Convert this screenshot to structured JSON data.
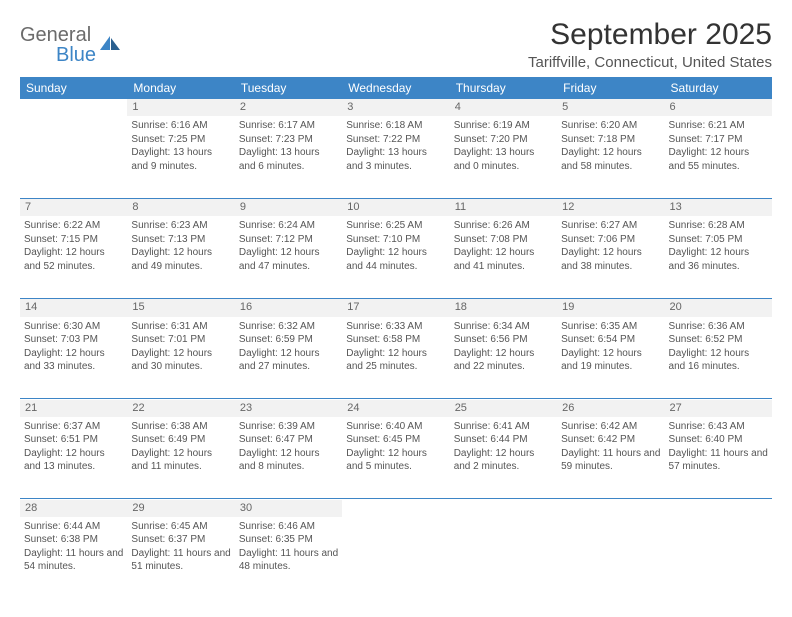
{
  "brand": {
    "name1": "General",
    "name2": "Blue"
  },
  "title": "September 2025",
  "location": "Tariffville, Connecticut, United States",
  "colors": {
    "header_bg": "#3d85c6",
    "header_text": "#ffffff",
    "daynum_bg": "#f2f2f2",
    "text": "#555555",
    "brand_gray": "#6b6b6b",
    "brand_blue": "#3d85c6"
  },
  "day_labels": [
    "Sunday",
    "Monday",
    "Tuesday",
    "Wednesday",
    "Thursday",
    "Friday",
    "Saturday"
  ],
  "weeks": [
    {
      "nums": [
        "",
        "1",
        "2",
        "3",
        "4",
        "5",
        "6"
      ],
      "cells": [
        "",
        "Sunrise: 6:16 AM\nSunset: 7:25 PM\nDaylight: 13 hours and 9 minutes.",
        "Sunrise: 6:17 AM\nSunset: 7:23 PM\nDaylight: 13 hours and 6 minutes.",
        "Sunrise: 6:18 AM\nSunset: 7:22 PM\nDaylight: 13 hours and 3 minutes.",
        "Sunrise: 6:19 AM\nSunset: 7:20 PM\nDaylight: 13 hours and 0 minutes.",
        "Sunrise: 6:20 AM\nSunset: 7:18 PM\nDaylight: 12 hours and 58 minutes.",
        "Sunrise: 6:21 AM\nSunset: 7:17 PM\nDaylight: 12 hours and 55 minutes."
      ]
    },
    {
      "nums": [
        "7",
        "8",
        "9",
        "10",
        "11",
        "12",
        "13"
      ],
      "cells": [
        "Sunrise: 6:22 AM\nSunset: 7:15 PM\nDaylight: 12 hours and 52 minutes.",
        "Sunrise: 6:23 AM\nSunset: 7:13 PM\nDaylight: 12 hours and 49 minutes.",
        "Sunrise: 6:24 AM\nSunset: 7:12 PM\nDaylight: 12 hours and 47 minutes.",
        "Sunrise: 6:25 AM\nSunset: 7:10 PM\nDaylight: 12 hours and 44 minutes.",
        "Sunrise: 6:26 AM\nSunset: 7:08 PM\nDaylight: 12 hours and 41 minutes.",
        "Sunrise: 6:27 AM\nSunset: 7:06 PM\nDaylight: 12 hours and 38 minutes.",
        "Sunrise: 6:28 AM\nSunset: 7:05 PM\nDaylight: 12 hours and 36 minutes."
      ]
    },
    {
      "nums": [
        "14",
        "15",
        "16",
        "17",
        "18",
        "19",
        "20"
      ],
      "cells": [
        "Sunrise: 6:30 AM\nSunset: 7:03 PM\nDaylight: 12 hours and 33 minutes.",
        "Sunrise: 6:31 AM\nSunset: 7:01 PM\nDaylight: 12 hours and 30 minutes.",
        "Sunrise: 6:32 AM\nSunset: 6:59 PM\nDaylight: 12 hours and 27 minutes.",
        "Sunrise: 6:33 AM\nSunset: 6:58 PM\nDaylight: 12 hours and 25 minutes.",
        "Sunrise: 6:34 AM\nSunset: 6:56 PM\nDaylight: 12 hours and 22 minutes.",
        "Sunrise: 6:35 AM\nSunset: 6:54 PM\nDaylight: 12 hours and 19 minutes.",
        "Sunrise: 6:36 AM\nSunset: 6:52 PM\nDaylight: 12 hours and 16 minutes."
      ]
    },
    {
      "nums": [
        "21",
        "22",
        "23",
        "24",
        "25",
        "26",
        "27"
      ],
      "cells": [
        "Sunrise: 6:37 AM\nSunset: 6:51 PM\nDaylight: 12 hours and 13 minutes.",
        "Sunrise: 6:38 AM\nSunset: 6:49 PM\nDaylight: 12 hours and 11 minutes.",
        "Sunrise: 6:39 AM\nSunset: 6:47 PM\nDaylight: 12 hours and 8 minutes.",
        "Sunrise: 6:40 AM\nSunset: 6:45 PM\nDaylight: 12 hours and 5 minutes.",
        "Sunrise: 6:41 AM\nSunset: 6:44 PM\nDaylight: 12 hours and 2 minutes.",
        "Sunrise: 6:42 AM\nSunset: 6:42 PM\nDaylight: 11 hours and 59 minutes.",
        "Sunrise: 6:43 AM\nSunset: 6:40 PM\nDaylight: 11 hours and 57 minutes."
      ]
    },
    {
      "nums": [
        "28",
        "29",
        "30",
        "",
        "",
        "",
        ""
      ],
      "cells": [
        "Sunrise: 6:44 AM\nSunset: 6:38 PM\nDaylight: 11 hours and 54 minutes.",
        "Sunrise: 6:45 AM\nSunset: 6:37 PM\nDaylight: 11 hours and 51 minutes.",
        "Sunrise: 6:46 AM\nSunset: 6:35 PM\nDaylight: 11 hours and 48 minutes.",
        "",
        "",
        "",
        ""
      ]
    }
  ]
}
